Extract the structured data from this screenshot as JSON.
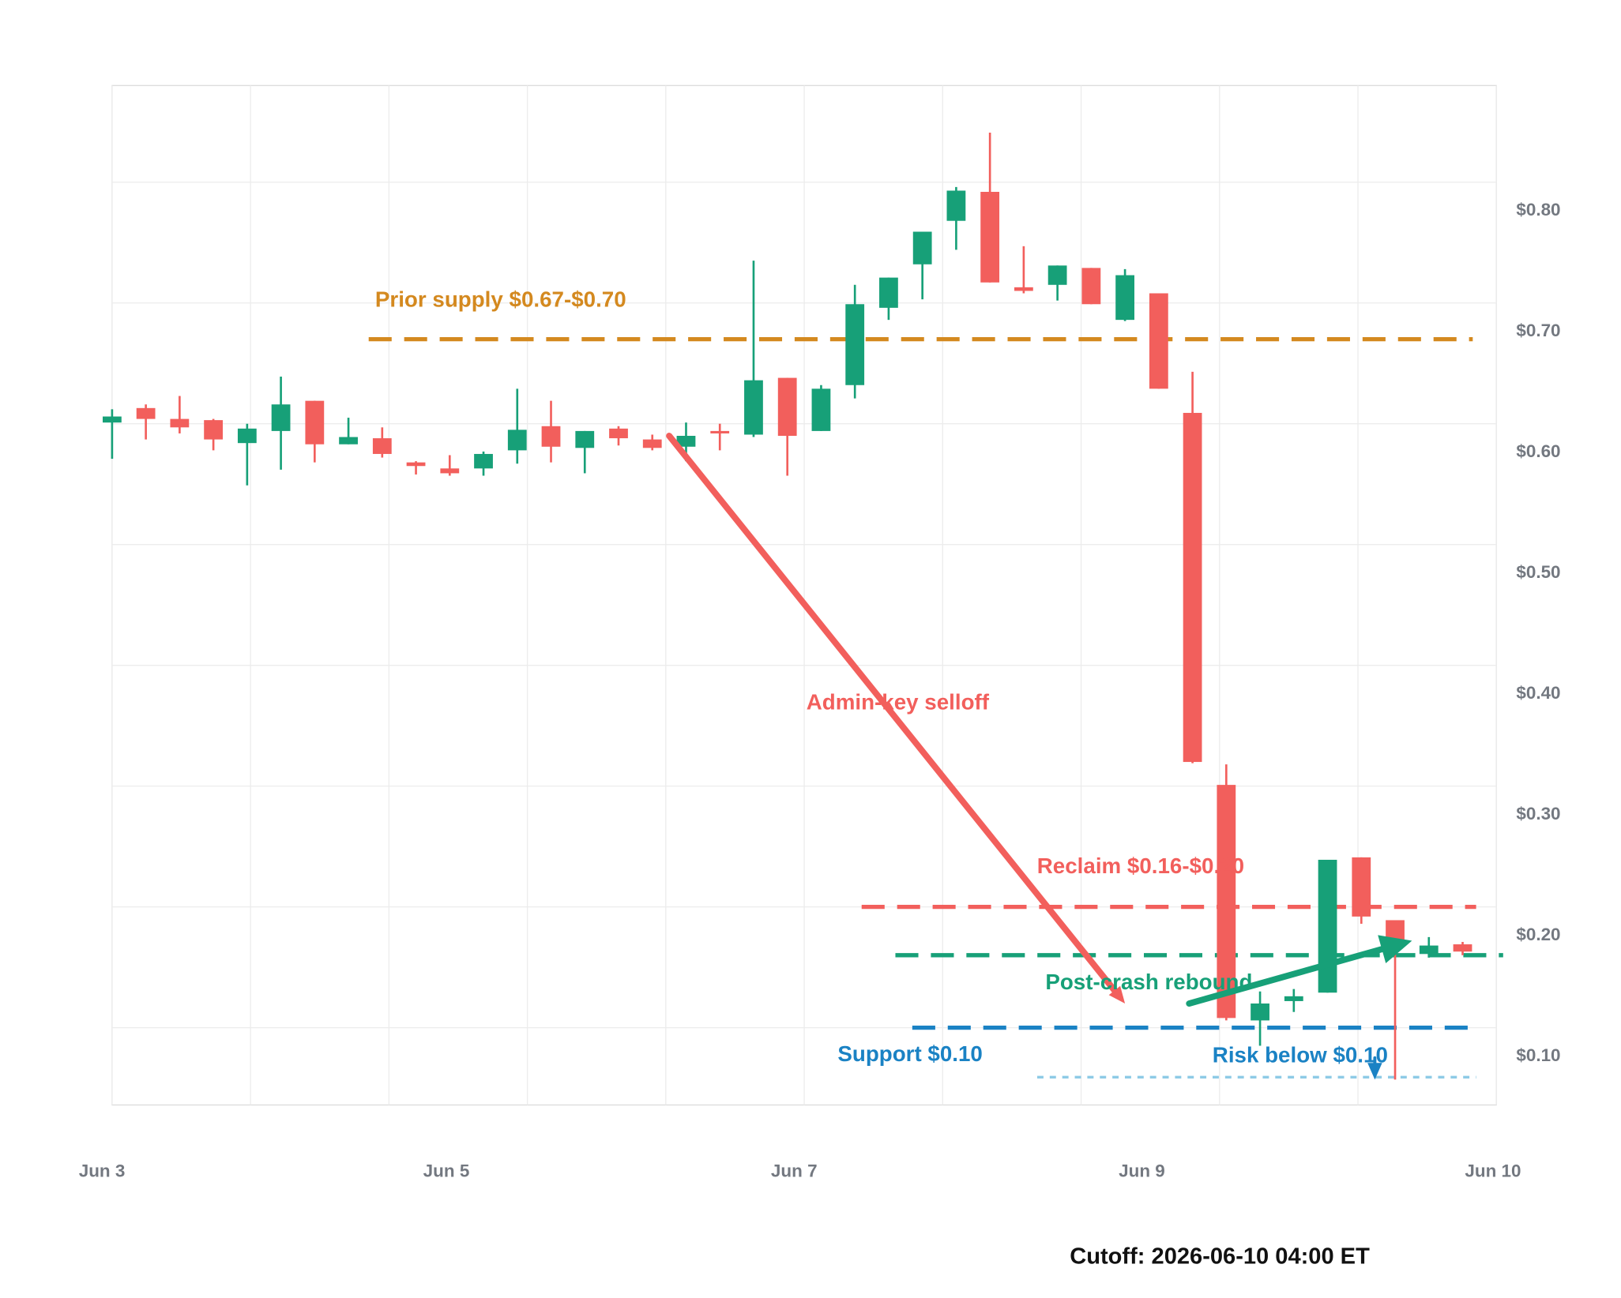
{
  "chart_data": {
    "type": "candlestick",
    "open": [
      0.601,
      0.613,
      0.604,
      0.603,
      0.584,
      0.594,
      0.619,
      0.583,
      0.588,
      0.568,
      0.563,
      0.563,
      0.578,
      0.598,
      0.58,
      0.596,
      0.587,
      0.581,
      0.594,
      0.591,
      0.638,
      0.594,
      0.632,
      0.696,
      0.732,
      0.768,
      0.792,
      0.713,
      0.715,
      0.729,
      0.686,
      0.708,
      0.609,
      0.301,
      0.106,
      0.122,
      0.129,
      0.241,
      0.189,
      0.161,
      0.169
    ],
    "high": [
      0.612,
      0.616,
      0.623,
      0.604,
      0.6,
      0.639,
      0.619,
      0.605,
      0.597,
      0.569,
      0.574,
      0.577,
      0.629,
      0.619,
      0.594,
      0.598,
      0.591,
      0.601,
      0.6,
      0.735,
      0.638,
      0.632,
      0.715,
      0.721,
      0.759,
      0.796,
      0.841,
      0.747,
      0.731,
      0.729,
      0.728,
      0.708,
      0.643,
      0.318,
      0.13,
      0.132,
      0.239,
      0.241,
      0.189,
      0.175,
      0.171
    ],
    "low": [
      0.571,
      0.587,
      0.592,
      0.578,
      0.549,
      0.562,
      0.568,
      0.583,
      0.572,
      0.558,
      0.557,
      0.557,
      0.567,
      0.568,
      0.559,
      0.582,
      0.578,
      0.569,
      0.578,
      0.589,
      0.557,
      0.594,
      0.621,
      0.686,
      0.703,
      0.744,
      0.717,
      0.708,
      0.702,
      0.699,
      0.685,
      0.629,
      0.319,
      0.106,
      0.085,
      0.113,
      0.129,
      0.186,
      0.057,
      0.158,
      0.16
    ],
    "close": [
      0.606,
      0.604,
      0.597,
      0.587,
      0.596,
      0.616,
      0.583,
      0.589,
      0.575,
      0.565,
      0.559,
      0.575,
      0.595,
      0.581,
      0.594,
      0.588,
      0.58,
      0.59,
      0.592,
      0.636,
      0.59,
      0.629,
      0.699,
      0.721,
      0.759,
      0.793,
      0.717,
      0.71,
      0.731,
      0.699,
      0.723,
      0.629,
      0.32,
      0.108,
      0.12,
      0.126,
      0.239,
      0.192,
      0.169,
      0.168,
      0.163
    ],
    "up_color": "#17a078",
    "down_color": "#f25f5c",
    "xlim": [
      0,
      41
    ],
    "ylim": [
      0.036,
      0.88
    ],
    "xticks": [
      {
        "value": -0.3,
        "label": "Jun 3"
      },
      {
        "value": 9.9,
        "label": "Jun 5"
      },
      {
        "value": 20.2,
        "label": "Jun 7"
      },
      {
        "value": 30.5,
        "label": "Jun 9"
      },
      {
        "value": 40.9,
        "label": "Jun 10"
      }
    ],
    "xgrid": [
      0,
      4.1,
      8.2,
      12.3,
      16.4,
      20.5,
      24.6,
      28.7,
      32.8,
      36.9,
      41
    ],
    "yticks": [
      {
        "value": 0.1,
        "label": "$0.10"
      },
      {
        "value": 0.2,
        "label": "$0.20"
      },
      {
        "value": 0.3,
        "label": "$0.30"
      },
      {
        "value": 0.4,
        "label": "$0.40"
      },
      {
        "value": 0.5,
        "label": "$0.50"
      },
      {
        "value": 0.6,
        "label": "$0.60"
      },
      {
        "value": 0.7,
        "label": "$0.70"
      },
      {
        "value": 0.8,
        "label": "$0.80"
      }
    ],
    "grid": true,
    "levels": [
      {
        "label": "Prior supply $0.67-$0.70",
        "value": 0.67,
        "x": [
          7.6,
          40.3
        ],
        "color": "#d4891f"
      },
      {
        "label": "Reclaim $0.16-$0.20",
        "value": 0.2,
        "x": [
          22.2,
          40.4
        ],
        "color": "#f25f5c"
      },
      {
        "label": "Post-crash rebound",
        "value": 0.16,
        "x": [
          23.2,
          41.2
        ],
        "color": "#17a078"
      },
      {
        "label": "Support $0.10",
        "value": 0.1,
        "x": [
          23.7,
          40.4
        ],
        "color": "#1a82c4"
      },
      {
        "label": "Risk below $0.10",
        "value": 0.059,
        "x": [
          27.4,
          40.4
        ],
        "color": "#8ecbe6"
      }
    ],
    "arrows": [
      {
        "from": [
          16.5,
          0.59
        ],
        "to": [
          30.0,
          0.12
        ],
        "color": "#f25f5c"
      },
      {
        "from": [
          31.9,
          0.12
        ],
        "to": [
          38.5,
          0.172
        ],
        "color": "#17a078"
      },
      {
        "from": [
          37.4,
          0.075
        ],
        "to": [
          37.4,
          0.057
        ],
        "color": "#1a82c4"
      }
    ],
    "footer": "Cutoff: 2026-06-10 04:00 ET"
  }
}
